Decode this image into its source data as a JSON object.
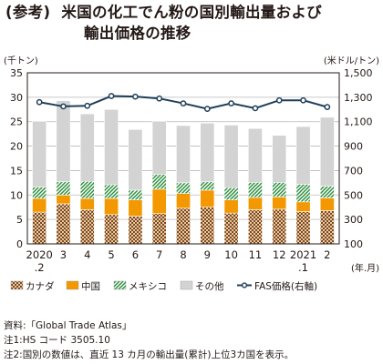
{
  "title": {
    "tag": "(参考)",
    "line1": "米国の化工でん粉の国別輸出量および",
    "line2": "輸出価格の推移"
  },
  "chart_data": {
    "type": "bar",
    "stacked": true,
    "left_axis": {
      "unit_label": "(千トン)",
      "ylim": [
        0,
        35
      ],
      "ticks": [
        "0",
        "5",
        "10",
        "15",
        "20",
        "25",
        "30",
        "35"
      ]
    },
    "right_axis": {
      "unit_label": "(米ドル/トン)",
      "ylim": [
        100,
        1500
      ],
      "ticks": [
        "100",
        "300",
        "500",
        "700",
        "900",
        "1,100",
        "1,300",
        "1,500"
      ]
    },
    "x_unit_label": "(年.月)",
    "categories": [
      {
        "top": "2020",
        "bottom": ".2"
      },
      {
        "top": "3",
        "bottom": ""
      },
      {
        "top": "4",
        "bottom": ""
      },
      {
        "top": "5",
        "bottom": ""
      },
      {
        "top": "6",
        "bottom": ""
      },
      {
        "top": "7",
        "bottom": ""
      },
      {
        "top": "8",
        "bottom": ""
      },
      {
        "top": "9",
        "bottom": ""
      },
      {
        "top": "10",
        "bottom": ""
      },
      {
        "top": "11",
        "bottom": ""
      },
      {
        "top": "12",
        "bottom": ""
      },
      {
        "top": "2021",
        "bottom": ".1"
      },
      {
        "top": "2",
        "bottom": ""
      }
    ],
    "series": [
      {
        "name": "カナダ",
        "pattern": "dots-brown",
        "color": "#8a5a2b",
        "values": [
          6.5,
          8.2,
          7.0,
          6.0,
          5.7,
          6.2,
          7.3,
          7.5,
          6.3,
          7.0,
          7.1,
          6.6,
          6.8
        ]
      },
      {
        "name": "中国",
        "pattern": "solid",
        "color": "#f39800",
        "values": [
          2.8,
          1.8,
          2.3,
          3.3,
          3.3,
          5.0,
          3.0,
          3.5,
          2.7,
          2.5,
          2.5,
          2.0,
          2.6
        ]
      },
      {
        "name": "メキシコ",
        "pattern": "diagonal-green",
        "color": "#3a9a4a",
        "values": [
          2.3,
          2.7,
          3.5,
          2.8,
          2.0,
          3.0,
          2.2,
          1.7,
          2.5,
          3.1,
          3.0,
          3.6,
          2.4
        ]
      },
      {
        "name": "その他",
        "pattern": "solid",
        "color": "#d3d3d3",
        "values": [
          13.5,
          16.6,
          13.8,
          15.4,
          12.4,
          10.9,
          11.7,
          12.0,
          12.8,
          11.0,
          9.6,
          11.8,
          14.1
        ]
      }
    ],
    "line_series": {
      "name": "FAS価格(右軸)",
      "color": "#1f3e58",
      "axis": "right",
      "values": [
        1260,
        1225,
        1230,
        1310,
        1305,
        1290,
        1250,
        1205,
        1250,
        1210,
        1275,
        1275,
        1220
      ]
    },
    "grid": true,
    "legend_position": "bottom"
  },
  "notes": [
    "資料:「Global Trade Atlas」",
    "注1:HS コード 3505.10",
    "注2:国別の数値は、直近 13 カ月の輸出量(累計)上位3カ国を表示。"
  ]
}
